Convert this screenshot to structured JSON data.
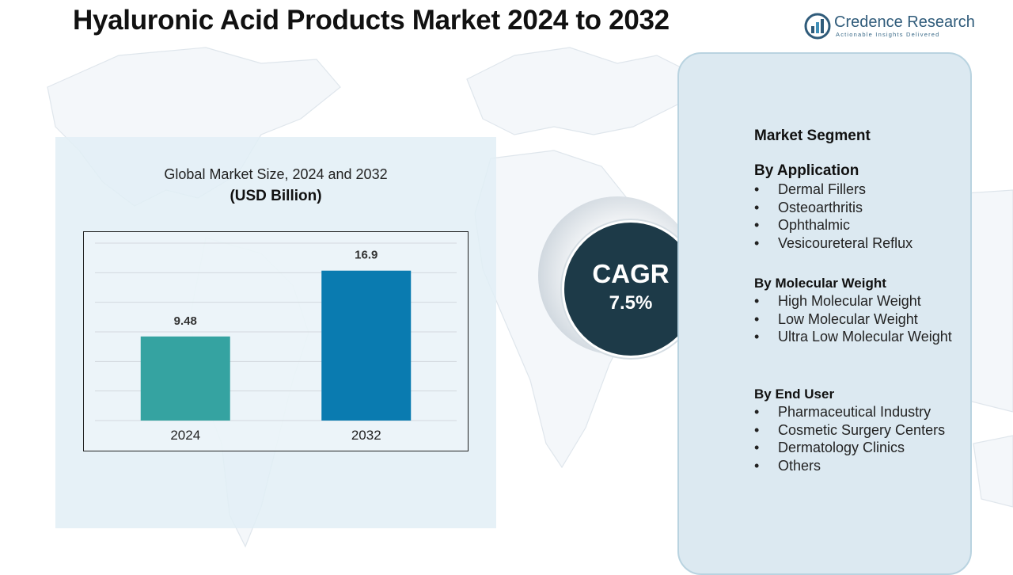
{
  "header": {
    "title": "Hyaluronic Acid Products Market 2024 to 2032"
  },
  "logo": {
    "name": "Credence Research",
    "tagline": "Actionable Insights Delivered"
  },
  "chart_data": {
    "type": "bar",
    "title": "Global Market Size, 2024 and 2032",
    "unit_label": "(USD Billion)",
    "categories": [
      "2024",
      "2032"
    ],
    "values": [
      9.48,
      16.9
    ],
    "data_labels": [
      "9.48",
      "16.9"
    ],
    "colors": [
      "#35a3a1",
      "#0a7bb0"
    ],
    "ylim": [
      0,
      20
    ],
    "grid": true,
    "xlabel": "",
    "ylabel": ""
  },
  "cagr": {
    "label": "CAGR",
    "value": "7.5%"
  },
  "segments": {
    "heading": "Market Segment",
    "groups": [
      {
        "title": "By Application",
        "items": [
          "Dermal Fillers",
          "Osteoarthritis",
          "Ophthalmic",
          "Vesicoureteral Reflux"
        ]
      },
      {
        "title": "By Molecular Weight",
        "items": [
          "High Molecular Weight",
          "Low Molecular Weight",
          "Ultra Low Molecular Weight"
        ]
      },
      {
        "title": "By End User",
        "items": [
          "Pharmaceutical Industry",
          "Cosmetic Surgery Centers",
          "Dermatology Clinics",
          "Others"
        ]
      }
    ]
  },
  "colors": {
    "panel_bg": "#e2eef6",
    "cagr_circle": "#1d3a48",
    "segment_panel": "#dce9f1",
    "brand": "#2f5b7a"
  }
}
